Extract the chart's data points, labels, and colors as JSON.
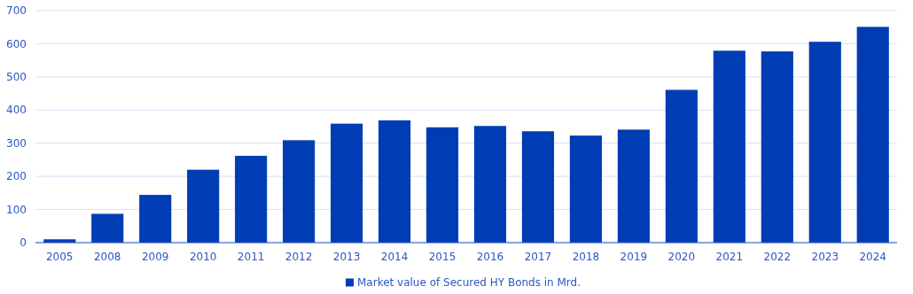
{
  "chart_data": {
    "type": "bar",
    "categories": [
      "2005",
      "2008",
      "2009",
      "2010",
      "2011",
      "2012",
      "2013",
      "2014",
      "2015",
      "2016",
      "2017",
      "2018",
      "2019",
      "2020",
      "2021",
      "2022",
      "2023",
      "2024"
    ],
    "series": [
      {
        "name": "Market value of Secured HY Bonds in Mrd.",
        "color": "#003db5",
        "values": [
          10,
          87,
          144,
          220,
          262,
          309,
          359,
          369,
          348,
          352,
          336,
          323,
          341,
          461,
          579,
          577,
          606,
          651
        ]
      }
    ],
    "ylim": [
      0,
      700
    ],
    "yticks": [
      0,
      100,
      200,
      300,
      400,
      500,
      600,
      700
    ],
    "grid": "y",
    "legend": "bottom"
  }
}
